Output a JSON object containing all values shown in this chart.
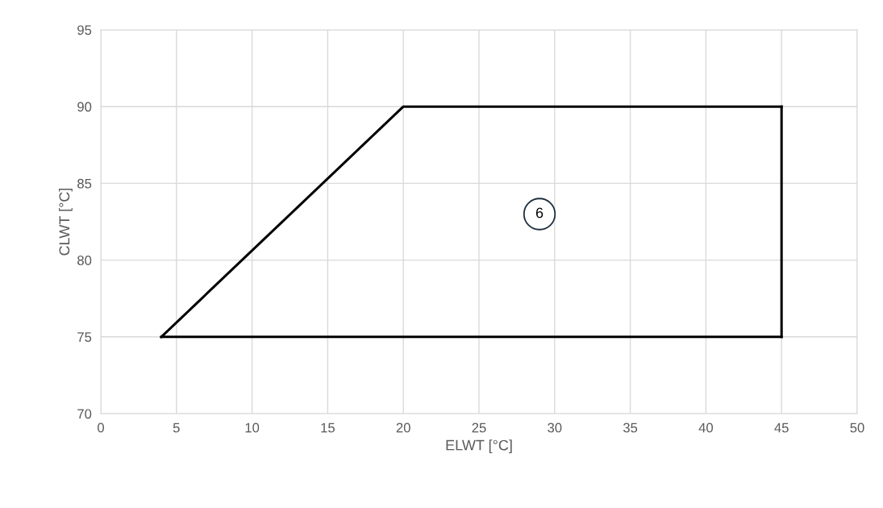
{
  "chart_data": {
    "type": "line",
    "xlabel": "ELWT [°C]",
    "ylabel": "CLWT [°C]",
    "series": [
      {
        "color": "#000000",
        "x": [
          4,
          20,
          45
        ],
        "values": [
          75,
          90,
          90
        ]
      },
      {
        "color": "#000000",
        "x": [
          4,
          45
        ],
        "values": [
          75,
          75
        ]
      },
      {
        "color": "#000000",
        "x": [
          45,
          45
        ],
        "values": [
          75,
          90
        ]
      }
    ],
    "xlim": [
      0,
      50
    ],
    "xticks": [
      0,
      5,
      10,
      15,
      20,
      25,
      30,
      35,
      40,
      45,
      50
    ],
    "ylim": [
      70,
      95
    ],
    "yticks": [
      70,
      75,
      80,
      85,
      90,
      95
    ],
    "grid": true,
    "marker": "none",
    "line_style": "solid",
    "annotations": [
      {
        "text": "6",
        "x": 29,
        "y": 83
      }
    ]
  }
}
